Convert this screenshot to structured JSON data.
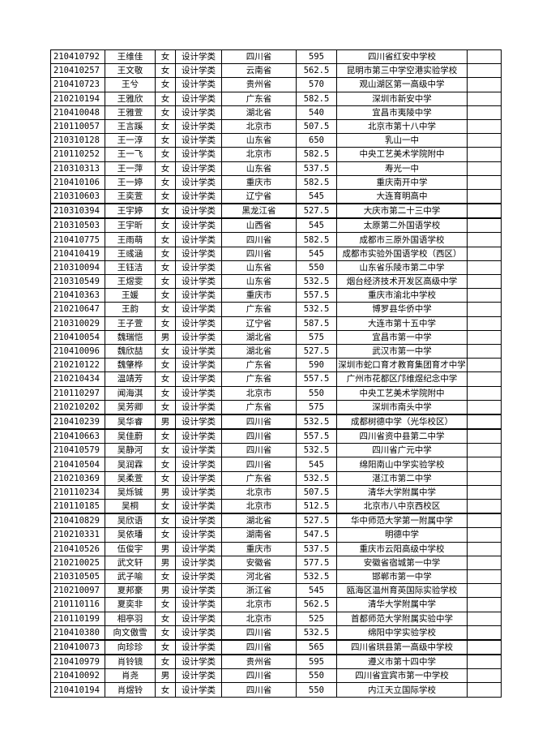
{
  "rows": [
    [
      "210410792",
      "王维佳",
      "女",
      "设计学类",
      "四川省",
      "595",
      "四川省红安中学校"
    ],
    [
      "210410257",
      "王文敬",
      "女",
      "设计学类",
      "云南省",
      "562.5",
      "昆明市第三中学空港实验学校"
    ],
    [
      "210410723",
      "王兮",
      "女",
      "设计学类",
      "贵州省",
      "570",
      "观山湖区第一高级中学"
    ],
    [
      "210210194",
      "王雅欣",
      "女",
      "设计学类",
      "广东省",
      "582.5",
      "深圳市新安中学"
    ],
    [
      "210410048",
      "王雅萱",
      "女",
      "设计学类",
      "湖北省",
      "540",
      "宜昌市夷陵中学"
    ],
    [
      "210110057",
      "王言蹊",
      "女",
      "设计学类",
      "北京市",
      "507.5",
      "北京市第十八中学"
    ],
    [
      "210310128",
      "王一淳",
      "女",
      "设计学类",
      "山东省",
      "650",
      "乳山一中"
    ],
    [
      "210110252",
      "王一飞",
      "女",
      "设计学类",
      "北京市",
      "582.5",
      "中央工艺美术学院附中"
    ],
    [
      "210310313",
      "王一萍",
      "女",
      "设计学类",
      "山东省",
      "537.5",
      "寿光一中"
    ],
    [
      "210410106",
      "王一婷",
      "女",
      "设计学类",
      "重庆市",
      "582.5",
      "重庆南开中学"
    ],
    [
      "210310603",
      "王奕萱",
      "女",
      "设计学类",
      "辽宁省",
      "545",
      "大连育明高中"
    ],
    [
      "210310394",
      "王宇婷",
      "女",
      "设计学类",
      "黑龙江省",
      "527.5",
      "大庆市第二十三中学"
    ],
    [
      "210310503",
      "王宇昕",
      "女",
      "设计学类",
      "山西省",
      "545",
      "太原第二外国语学校"
    ],
    [
      "210410775",
      "王雨萌",
      "女",
      "设计学类",
      "四川省",
      "582.5",
      "成都市三原外国语学校"
    ],
    [
      "210410419",
      "王彧涵",
      "女",
      "设计学类",
      "四川省",
      "545",
      "成都市实验外国语学校（西区）"
    ],
    [
      "210310094",
      "王钰洁",
      "女",
      "设计学类",
      "山东省",
      "550",
      "山东省乐陵市第二中学"
    ],
    [
      "210310549",
      "王煜雯",
      "女",
      "设计学类",
      "山东省",
      "532.5",
      "烟台经济技术开发区高级中学"
    ],
    [
      "210410363",
      "王媛",
      "女",
      "设计学类",
      "重庆市",
      "557.5",
      "重庆市渝北中学校"
    ],
    [
      "210210647",
      "王韵",
      "女",
      "设计学类",
      "广东省",
      "532.5",
      "博罗县华侨中学"
    ],
    [
      "210310029",
      "王子萱",
      "女",
      "设计学类",
      "辽宁省",
      "587.5",
      "大连市第十五中学"
    ],
    [
      "210410054",
      "魏瑞恺",
      "男",
      "设计学类",
      "湖北省",
      "575",
      "宜昌市第一中学"
    ],
    [
      "210410096",
      "魏欣喆",
      "女",
      "设计学类",
      "湖北省",
      "527.5",
      "武汉市第一中学"
    ],
    [
      "210210122",
      "魏肇桦",
      "女",
      "设计学类",
      "广东省",
      "590",
      "深圳市蛇口育才教育集团育才中学"
    ],
    [
      "210210434",
      "温靖芳",
      "女",
      "设计学类",
      "广东省",
      "557.5",
      "广州市花都区邝维煜纪念中学"
    ],
    [
      "210110297",
      "闻海淇",
      "女",
      "设计学类",
      "北京市",
      "550",
      "中央工艺美术学院附中"
    ],
    [
      "210210202",
      "吴芳卿",
      "女",
      "设计学类",
      "广东省",
      "575",
      "深圳市南头中学"
    ],
    [
      "210410239",
      "吴华睿",
      "男",
      "设计学类",
      "四川省",
      "532.5",
      "成都树德中学（光华校区）"
    ],
    [
      "210410663",
      "吴佳蔚",
      "女",
      "设计学类",
      "四川省",
      "557.5",
      "四川省资中县第二中学"
    ],
    [
      "210410579",
      "吴静河",
      "女",
      "设计学类",
      "四川省",
      "532.5",
      "四川省广元中学"
    ],
    [
      "210410504",
      "吴润霖",
      "女",
      "设计学类",
      "四川省",
      "545",
      "绵阳南山中学实验学校"
    ],
    [
      "210210369",
      "吴柔萱",
      "女",
      "设计学类",
      "广东省",
      "532.5",
      "湛江市第二中学"
    ],
    [
      "210110234",
      "吴烁铖",
      "男",
      "设计学类",
      "北京市",
      "507.5",
      "清华大学附属中学"
    ],
    [
      "210110185",
      "吴桐",
      "女",
      "设计学类",
      "北京市",
      "512.5",
      "北京市八中京西校区"
    ],
    [
      "210410829",
      "吴欣语",
      "女",
      "设计学类",
      "湖北省",
      "527.5",
      "华中师范大学第一附属中学"
    ],
    [
      "210210331",
      "吴依璠",
      "女",
      "设计学类",
      "湖南省",
      "547.5",
      "明德中学"
    ],
    [
      "210410526",
      "伍俊宇",
      "男",
      "设计学类",
      "重庆市",
      "537.5",
      "重庆市云阳高级中学校"
    ],
    [
      "210210025",
      "武文轩",
      "男",
      "设计学类",
      "安徽省",
      "577.5",
      "安徽省宿城第一中学"
    ],
    [
      "210310505",
      "武子喻",
      "女",
      "设计学类",
      "河北省",
      "532.5",
      "邯郸市第一中学"
    ],
    [
      "210210097",
      "夏邦豪",
      "男",
      "设计学类",
      "浙江省",
      "545",
      "瓯海区温州育英国际实验学校"
    ],
    [
      "210110116",
      "夏奕非",
      "女",
      "设计学类",
      "北京市",
      "562.5",
      "清华大学附属中学"
    ],
    [
      "210110199",
      "相亭羽",
      "女",
      "设计学类",
      "北京市",
      "525",
      "首都师范大学附属实验中学"
    ],
    [
      "210410380",
      "向文傲雪",
      "女",
      "设计学类",
      "四川省",
      "532.5",
      "绵阳中学实验学校"
    ],
    [
      "210410073",
      "向珍珍",
      "女",
      "设计学类",
      "四川省",
      "565",
      "四川省珙县第一高级中学校"
    ],
    [
      "210410979",
      "肖铃镜",
      "女",
      "设计学类",
      "贵州省",
      "595",
      "遵义市第十四中学"
    ],
    [
      "210410092",
      "肖尧",
      "男",
      "设计学类",
      "四川省",
      "550",
      "四川省宜宾市第一中学校"
    ],
    [
      "210410194",
      "肖煜铃",
      "女",
      "设计学类",
      "四川省",
      "550",
      "内江天立国际学校"
    ]
  ]
}
